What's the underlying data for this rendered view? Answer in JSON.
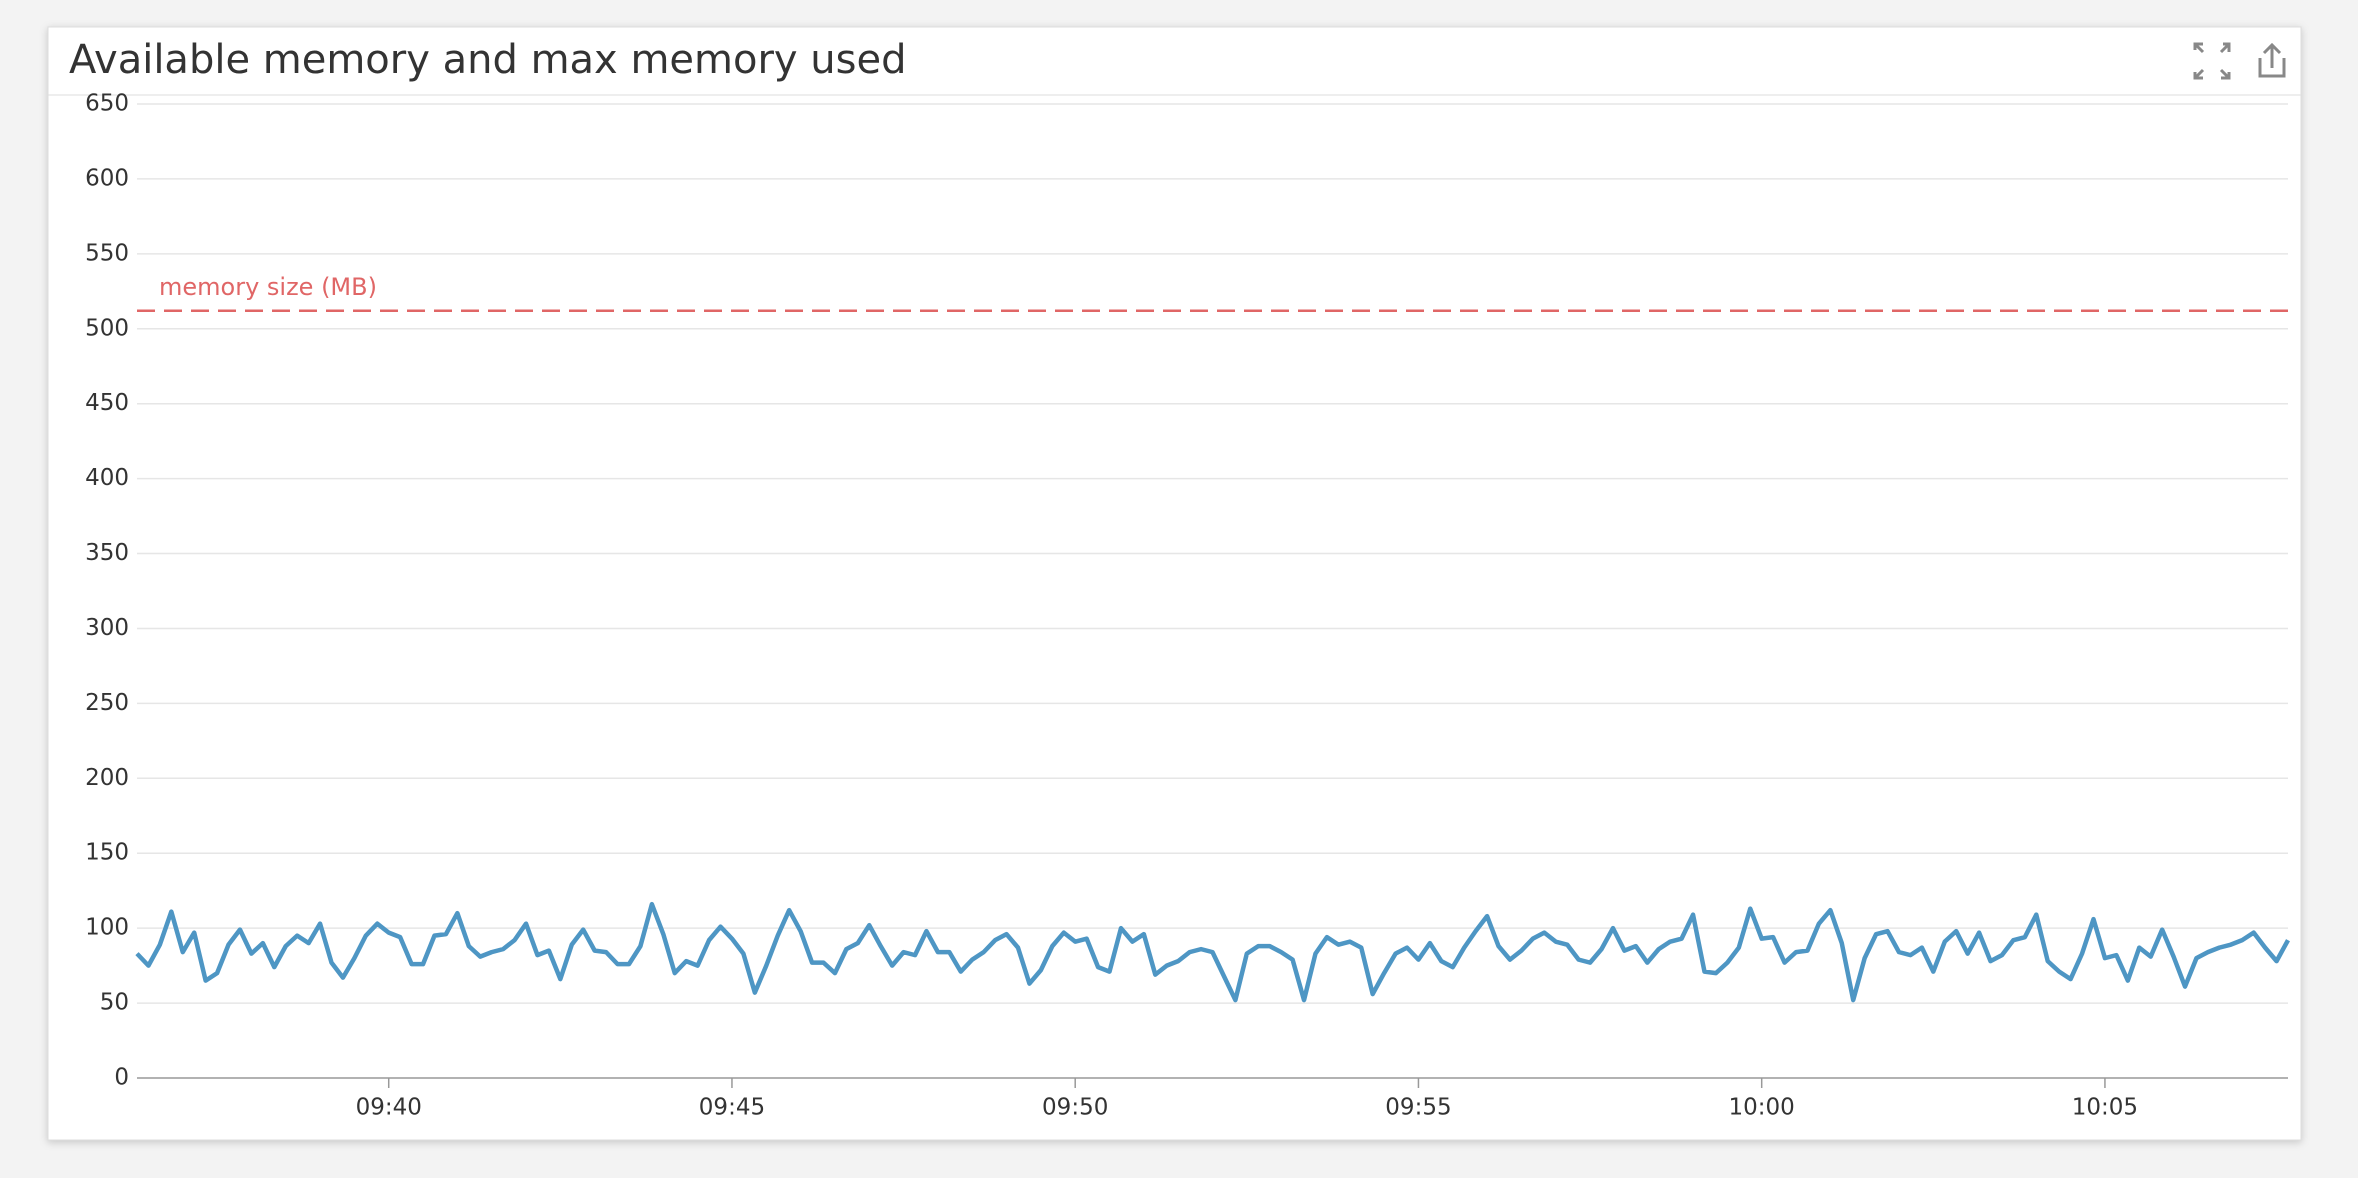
{
  "chart_data": {
    "type": "line",
    "title": "Available memory and max memory used",
    "x": [
      "09:36:20",
      "09:36:30",
      "09:36:40",
      "09:36:50",
      "09:37:00",
      "09:37:10",
      "09:37:20",
      "09:37:30",
      "09:37:40",
      "09:37:50",
      "09:38:00",
      "09:38:10",
      "09:38:20",
      "09:38:30",
      "09:38:40",
      "09:38:50",
      "09:39:00",
      "09:39:10",
      "09:39:20",
      "09:39:30",
      "09:39:40",
      "09:39:50",
      "09:40:00",
      "09:40:10",
      "09:40:20",
      "09:40:30",
      "09:40:40",
      "09:40:50",
      "09:41:00",
      "09:41:10",
      "09:41:20",
      "09:41:30",
      "09:41:40",
      "09:41:50",
      "09:42:00",
      "09:42:10",
      "09:42:20",
      "09:42:30",
      "09:42:40",
      "09:42:50",
      "09:43:00",
      "09:43:10",
      "09:43:20",
      "09:43:30",
      "09:43:40",
      "09:43:50",
      "09:44:00",
      "09:44:10",
      "09:44:20",
      "09:44:30",
      "09:44:40",
      "09:44:50",
      "09:45:00",
      "09:45:10",
      "09:45:20",
      "09:45:30",
      "09:45:40",
      "09:45:50",
      "09:46:00",
      "09:46:10",
      "09:46:20",
      "09:46:30",
      "09:46:40",
      "09:46:50",
      "09:47:00",
      "09:47:10",
      "09:47:20",
      "09:47:30",
      "09:47:40",
      "09:47:50",
      "09:48:00",
      "09:48:10",
      "09:48:20",
      "09:48:30",
      "09:48:40",
      "09:48:50",
      "09:49:00",
      "09:49:10",
      "09:49:20",
      "09:49:30",
      "09:49:40",
      "09:49:50",
      "09:50:00",
      "09:50:10",
      "09:50:20",
      "09:50:30",
      "09:50:40",
      "09:50:50",
      "09:51:00",
      "09:51:10",
      "09:51:20",
      "09:51:30",
      "09:51:40",
      "09:51:50",
      "09:52:00",
      "09:52:10",
      "09:52:20",
      "09:52:30",
      "09:52:40",
      "09:52:50",
      "09:53:00",
      "09:53:10",
      "09:53:20",
      "09:53:30",
      "09:53:40",
      "09:53:50",
      "09:54:00",
      "09:54:10",
      "09:54:20",
      "09:54:30",
      "09:54:40",
      "09:54:50",
      "09:55:00",
      "09:55:10",
      "09:55:20",
      "09:55:30",
      "09:55:40",
      "09:55:50",
      "09:56:00",
      "09:56:10",
      "09:56:20",
      "09:56:30",
      "09:56:40",
      "09:56:50",
      "09:57:00",
      "09:57:10",
      "09:57:20",
      "09:57:30",
      "09:57:40",
      "09:57:50",
      "09:58:00",
      "09:58:10",
      "09:58:20",
      "09:58:30",
      "09:58:40",
      "09:58:50",
      "09:59:00",
      "09:59:10",
      "09:59:20",
      "09:59:30",
      "09:59:40",
      "09:59:50",
      "10:00:00",
      "10:00:10",
      "10:00:20",
      "10:00:30",
      "10:00:40",
      "10:00:50",
      "10:01:00",
      "10:01:10",
      "10:01:20",
      "10:01:30",
      "10:01:40",
      "10:01:50",
      "10:02:00",
      "10:02:10",
      "10:02:20",
      "10:02:30",
      "10:02:40",
      "10:02:50",
      "10:03:00",
      "10:03:10",
      "10:03:20",
      "10:03:30",
      "10:03:40",
      "10:03:50",
      "10:04:00",
      "10:04:10",
      "10:04:20",
      "10:04:30",
      "10:04:40",
      "10:04:50",
      "10:05:00",
      "10:05:10",
      "10:05:20",
      "10:05:30",
      "10:05:40",
      "10:05:50",
      "10:06:00",
      "10:06:10",
      "10:06:20",
      "10:06:30",
      "10:06:40",
      "10:06:50",
      "10:07:00",
      "10:07:10",
      "10:07:20",
      "10:07:30",
      "10:07:40"
    ],
    "series": [
      {
        "color": "#4e96c4",
        "values": [
          83,
          75,
          89,
          111,
          84,
          97,
          65,
          70,
          89,
          99,
          83,
          90,
          74,
          88,
          95,
          90,
          103,
          77,
          67,
          80,
          95,
          103,
          97,
          94,
          76,
          76,
          95,
          96,
          110,
          88,
          81,
          84,
          86,
          92,
          103,
          82,
          85,
          66,
          89,
          99,
          85,
          84,
          76,
          76,
          88,
          116,
          96,
          70,
          78,
          75,
          92,
          101,
          93,
          83,
          57,
          75,
          95,
          112,
          98,
          77,
          77,
          70,
          86,
          90,
          102,
          88,
          75,
          84,
          82,
          98,
          84,
          84,
          71,
          79,
          84,
          92,
          96,
          87,
          63,
          72,
          88,
          97,
          91,
          93,
          74,
          71,
          100,
          91,
          96,
          69,
          75,
          78,
          84,
          86,
          84,
          68,
          52,
          83,
          88,
          88,
          84,
          79,
          52,
          83,
          94,
          89,
          91,
          87,
          56,
          70,
          83,
          87,
          79,
          90,
          78,
          74,
          87,
          98,
          108,
          88,
          79,
          85,
          93,
          97,
          91,
          89,
          79,
          77,
          86,
          100,
          85,
          88,
          77,
          86,
          91,
          93,
          109,
          71,
          70,
          77,
          87,
          113,
          93,
          94,
          77,
          84,
          85,
          103,
          112,
          90,
          52,
          80,
          96,
          98,
          84,
          82,
          87,
          71,
          91,
          98,
          83,
          97,
          78,
          82,
          92,
          94,
          109,
          78,
          71,
          66,
          83,
          106,
          80,
          82,
          65,
          87,
          81,
          99,
          81,
          61,
          80,
          84,
          87,
          89,
          92,
          97,
          87,
          78,
          92
        ]
      }
    ],
    "xlim": [
      "09:36:20",
      "10:07:40"
    ],
    "xticks": [
      "09:40",
      "09:45",
      "09:50",
      "09:55",
      "10:00",
      "10:05"
    ],
    "ylim": [
      0,
      650
    ],
    "yticks": [
      0,
      50,
      100,
      150,
      200,
      250,
      300,
      350,
      400,
      450,
      500,
      550,
      600,
      650
    ],
    "grid": true,
    "annotations": [
      {
        "text": "memory size (MB)",
        "value": 512,
        "color": "#e06666"
      }
    ]
  }
}
